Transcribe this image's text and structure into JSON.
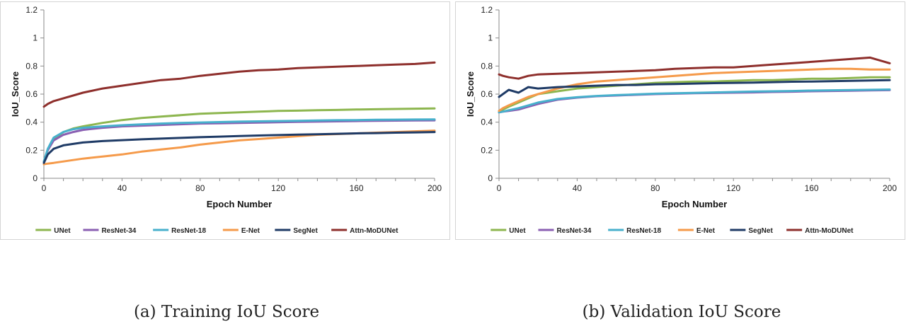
{
  "figure": {
    "caption_a": "(a) Training IoU Score",
    "caption_b": "(b) Validation IoU Score"
  },
  "chart_data": [
    {
      "type": "line",
      "title": "",
      "xlabel": "Epoch Number",
      "ylabel": "IoU_Score",
      "xlim": [
        0,
        200
      ],
      "ylim": [
        0,
        1.2
      ],
      "xticks": [
        0,
        40,
        80,
        120,
        160,
        200
      ],
      "yticks": [
        0,
        0.2,
        0.4,
        0.6,
        0.8,
        1,
        1.2
      ],
      "ytick_labels": [
        "0",
        "0.2",
        "0.4",
        "0.6",
        "0.8",
        "1",
        "1.2"
      ],
      "legend_position": "bottom",
      "x": [
        0,
        2,
        5,
        10,
        15,
        20,
        30,
        40,
        50,
        60,
        70,
        80,
        90,
        100,
        110,
        120,
        130,
        140,
        150,
        160,
        170,
        180,
        190,
        200
      ],
      "series": [
        {
          "name": "UNet",
          "color": "#8db64f",
          "values": [
            0.12,
            0.2,
            0.28,
            0.33,
            0.355,
            0.37,
            0.395,
            0.415,
            0.43,
            0.44,
            0.45,
            0.46,
            0.465,
            0.47,
            0.475,
            0.48,
            0.482,
            0.485,
            0.487,
            0.49,
            0.492,
            0.494,
            0.496,
            0.498
          ]
        },
        {
          "name": "ResNet-34",
          "color": "#8a5fb2",
          "values": [
            0.12,
            0.2,
            0.27,
            0.31,
            0.33,
            0.345,
            0.36,
            0.37,
            0.375,
            0.38,
            0.385,
            0.39,
            0.392,
            0.395,
            0.397,
            0.4,
            0.402,
            0.404,
            0.406,
            0.408,
            0.41,
            0.411,
            0.412,
            0.413
          ]
        },
        {
          "name": "ResNet-18",
          "color": "#47b0cc",
          "values": [
            0.12,
            0.21,
            0.29,
            0.33,
            0.35,
            0.36,
            0.37,
            0.378,
            0.384,
            0.39,
            0.395,
            0.398,
            0.401,
            0.404,
            0.406,
            0.408,
            0.41,
            0.412,
            0.414,
            0.415,
            0.417,
            0.418,
            0.419,
            0.42
          ]
        },
        {
          "name": "E-Net",
          "color": "#f59a4a",
          "values": [
            0.1,
            0.105,
            0.11,
            0.12,
            0.13,
            0.14,
            0.155,
            0.17,
            0.19,
            0.205,
            0.22,
            0.24,
            0.255,
            0.27,
            0.28,
            0.29,
            0.3,
            0.31,
            0.315,
            0.32,
            0.325,
            0.33,
            0.335,
            0.34
          ]
        },
        {
          "name": "SegNet",
          "color": "#1f3b66",
          "values": [
            0.11,
            0.17,
            0.21,
            0.235,
            0.245,
            0.255,
            0.265,
            0.272,
            0.278,
            0.283,
            0.288,
            0.293,
            0.297,
            0.301,
            0.305,
            0.308,
            0.311,
            0.314,
            0.317,
            0.32,
            0.322,
            0.325,
            0.327,
            0.33
          ]
        },
        {
          "name": "Attn-MoDUNet",
          "color": "#8e2f2c",
          "values": [
            0.51,
            0.53,
            0.55,
            0.57,
            0.59,
            0.61,
            0.64,
            0.66,
            0.68,
            0.7,
            0.71,
            0.73,
            0.745,
            0.76,
            0.77,
            0.775,
            0.785,
            0.79,
            0.795,
            0.8,
            0.805,
            0.81,
            0.815,
            0.825
          ]
        }
      ]
    },
    {
      "type": "line",
      "title": "",
      "xlabel": "Epoch Number",
      "ylabel": "IoU_Score",
      "xlim": [
        0,
        200
      ],
      "ylim": [
        0,
        1.2
      ],
      "xticks": [
        0,
        40,
        80,
        120,
        160,
        200
      ],
      "yticks": [
        0,
        0.2,
        0.4,
        0.6,
        0.8,
        1,
        1.2
      ],
      "ytick_labels": [
        "0",
        "0.2",
        "0.4",
        "0.6",
        "0.8",
        "1",
        "1.2"
      ],
      "legend_position": "bottom",
      "x": [
        0,
        2,
        5,
        10,
        15,
        20,
        30,
        40,
        50,
        60,
        70,
        80,
        90,
        100,
        110,
        120,
        130,
        140,
        150,
        160,
        170,
        180,
        190,
        200
      ],
      "series": [
        {
          "name": "UNet",
          "color": "#8db64f",
          "values": [
            0.48,
            0.49,
            0.51,
            0.54,
            0.57,
            0.6,
            0.62,
            0.64,
            0.65,
            0.66,
            0.67,
            0.68,
            0.685,
            0.69,
            0.69,
            0.695,
            0.7,
            0.7,
            0.705,
            0.71,
            0.71,
            0.715,
            0.72,
            0.72
          ]
        },
        {
          "name": "ResNet-34",
          "color": "#8a5fb2",
          "values": [
            0.47,
            0.475,
            0.48,
            0.49,
            0.51,
            0.53,
            0.56,
            0.575,
            0.585,
            0.59,
            0.595,
            0.6,
            0.603,
            0.606,
            0.608,
            0.61,
            0.612,
            0.615,
            0.617,
            0.62,
            0.622,
            0.624,
            0.626,
            0.628
          ]
        },
        {
          "name": "ResNet-18",
          "color": "#47b0cc",
          "values": [
            0.47,
            0.475,
            0.485,
            0.5,
            0.52,
            0.54,
            0.565,
            0.578,
            0.587,
            0.593,
            0.598,
            0.603,
            0.606,
            0.609,
            0.612,
            0.615,
            0.618,
            0.62,
            0.622,
            0.625,
            0.627,
            0.629,
            0.631,
            0.633
          ]
        },
        {
          "name": "E-Net",
          "color": "#f59a4a",
          "values": [
            0.48,
            0.5,
            0.52,
            0.55,
            0.58,
            0.6,
            0.64,
            0.67,
            0.69,
            0.7,
            0.71,
            0.72,
            0.73,
            0.74,
            0.75,
            0.755,
            0.76,
            0.765,
            0.77,
            0.775,
            0.78,
            0.78,
            0.775,
            0.775
          ]
        },
        {
          "name": "SegNet",
          "color": "#1f3b66",
          "values": [
            0.58,
            0.6,
            0.63,
            0.61,
            0.65,
            0.64,
            0.65,
            0.655,
            0.66,
            0.665,
            0.665,
            0.67,
            0.672,
            0.675,
            0.678,
            0.68,
            0.682,
            0.685,
            0.688,
            0.69,
            0.692,
            0.695,
            0.697,
            0.7
          ]
        },
        {
          "name": "Attn-MoDUNet",
          "color": "#8e2f2c",
          "values": [
            0.74,
            0.73,
            0.72,
            0.71,
            0.73,
            0.74,
            0.745,
            0.75,
            0.755,
            0.76,
            0.765,
            0.77,
            0.78,
            0.785,
            0.79,
            0.79,
            0.8,
            0.81,
            0.82,
            0.83,
            0.84,
            0.85,
            0.86,
            0.82
          ]
        }
      ]
    }
  ]
}
